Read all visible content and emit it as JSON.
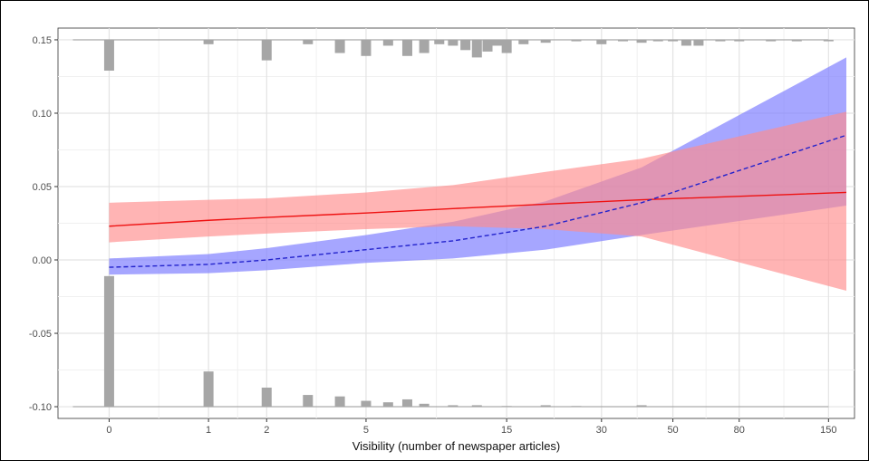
{
  "chart_data": {
    "type": "line",
    "title": "",
    "xlabel": "Visibility (number of newspaper articles)",
    "ylabel": "",
    "x_scale": "log(1+x)",
    "xlim": [
      -0.3,
      180
    ],
    "ylim": [
      -0.108,
      0.158
    ],
    "grid": true,
    "x_ticks": [
      0,
      1,
      2,
      5,
      15,
      30,
      50,
      80,
      150
    ],
    "y_ticks": [
      0.15,
      0.1,
      0.05,
      0.0,
      -0.05,
      -0.1
    ],
    "y_tick_labels": [
      "0.15",
      "0.10",
      "0.05",
      "0.00",
      "-0.05",
      "-0.10"
    ],
    "colors": {
      "red_line": "#ee1111",
      "red_band": "#ff8c8c",
      "blue_line": "#2222cc",
      "blue_band": "#8080ff",
      "hist": "#a6a6a6"
    },
    "series": [
      {
        "style": "solid",
        "color": "red",
        "x": [
          0,
          1,
          2,
          5,
          10,
          20,
          40,
          170
        ],
        "y": [
          0.023,
          0.027,
          0.029,
          0.032,
          0.035,
          0.038,
          0.041,
          0.046
        ],
        "lower": [
          0.012,
          0.016,
          0.018,
          0.021,
          0.023,
          0.021,
          0.016,
          -0.021
        ],
        "upper": [
          0.039,
          0.041,
          0.042,
          0.046,
          0.051,
          0.06,
          0.069,
          0.101
        ]
      },
      {
        "style": "dashed",
        "color": "blue",
        "x": [
          0,
          1,
          2,
          5,
          10,
          20,
          40,
          170
        ],
        "y": [
          -0.005,
          -0.003,
          0.0,
          0.007,
          0.013,
          0.023,
          0.039,
          0.085
        ],
        "lower": [
          -0.01,
          -0.009,
          -0.007,
          -0.002,
          0.001,
          0.007,
          0.017,
          0.037
        ],
        "upper": [
          0.001,
          0.004,
          0.008,
          0.017,
          0.026,
          0.04,
          0.063,
          0.138
        ]
      }
    ],
    "histogram_top": {
      "baseline": 0.15,
      "bins": [
        0,
        1,
        2,
        3,
        4,
        5,
        6,
        7,
        8,
        9,
        10,
        11,
        12,
        13,
        14,
        15,
        17,
        20,
        25,
        30,
        35,
        40,
        45,
        50,
        55,
        60,
        70,
        80,
        100,
        120,
        150
      ],
      "values": [
        -0.021,
        -0.003,
        -0.014,
        -0.003,
        -0.009,
        -0.011,
        -0.004,
        -0.011,
        -0.009,
        -0.003,
        -0.004,
        -0.007,
        -0.012,
        -0.008,
        -0.004,
        -0.009,
        -0.003,
        -0.002,
        -0.001,
        -0.003,
        -0.001,
        -0.002,
        -0.001,
        -0.001,
        -0.004,
        -0.004,
        -0.001,
        -0.001,
        -0.001,
        -0.001,
        -0.001
      ]
    },
    "histogram_bottom": {
      "baseline": -0.1,
      "bins": [
        0,
        1,
        2,
        3,
        4,
        5,
        6,
        7,
        8,
        10,
        12,
        15,
        20,
        25,
        40
      ],
      "values": [
        0.089,
        0.024,
        0.013,
        0.008,
        0.007,
        0.004,
        0.003,
        0.005,
        0.002,
        0.001,
        0.001,
        0.0005,
        0.001,
        0.0005,
        0.001
      ]
    }
  }
}
